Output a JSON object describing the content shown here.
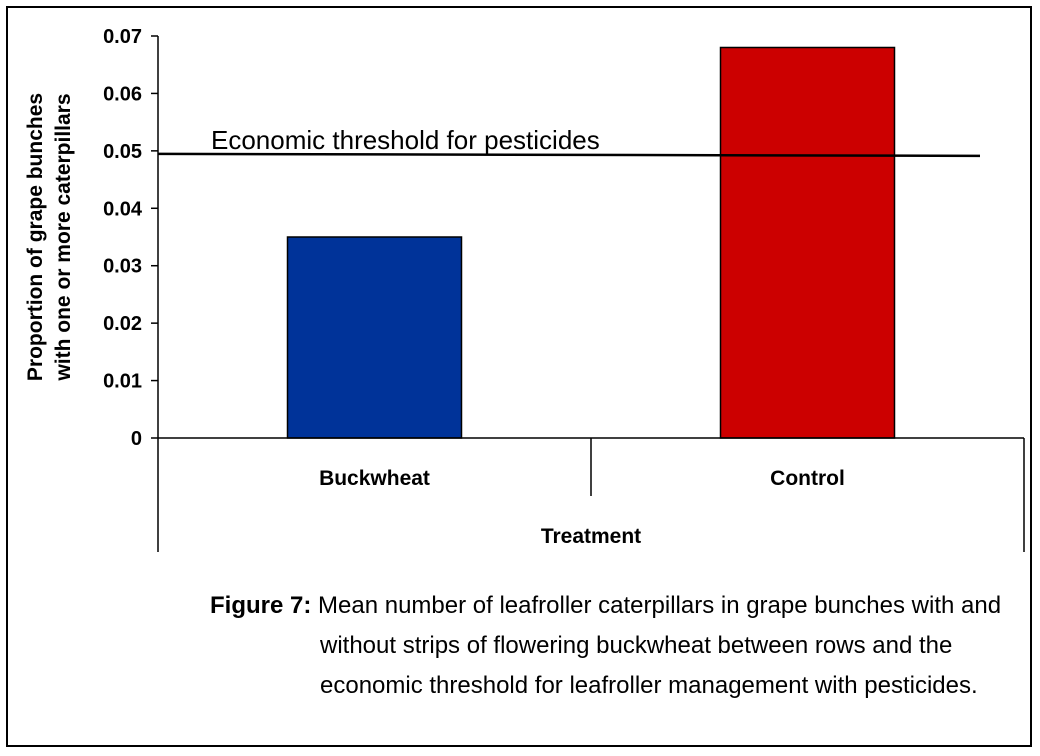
{
  "chart_data": {
    "type": "bar",
    "categories": [
      "Buckwheat",
      "Control"
    ],
    "series": [
      {
        "values": [
          0.035,
          0.068
        ],
        "colors": [
          "#003399",
          "#cc0000"
        ]
      }
    ],
    "xlabel": "Treatment",
    "ylabel_lines": [
      "Proportion of grape bunches",
      "with one or more caterpillars"
    ],
    "ylim": [
      0,
      0.07
    ],
    "yticks": [
      "0",
      "0.01",
      "0.02",
      "0.03",
      "0.04",
      "0.05",
      "0.06",
      "0.07"
    ],
    "ytick_values": [
      0,
      0.01,
      0.02,
      0.03,
      0.04,
      0.05,
      0.06,
      0.07
    ],
    "threshold": {
      "value": 0.0493,
      "label": "Economic threshold for pesticides"
    },
    "grid": false,
    "legend": "none"
  },
  "caption": {
    "label": "Figure 7:",
    "text": "Mean number of leafroller caterpillars in grape bunches with and without strips of flowering buckwheat between rows and the economic threshold for leafroller management with pesticides."
  }
}
